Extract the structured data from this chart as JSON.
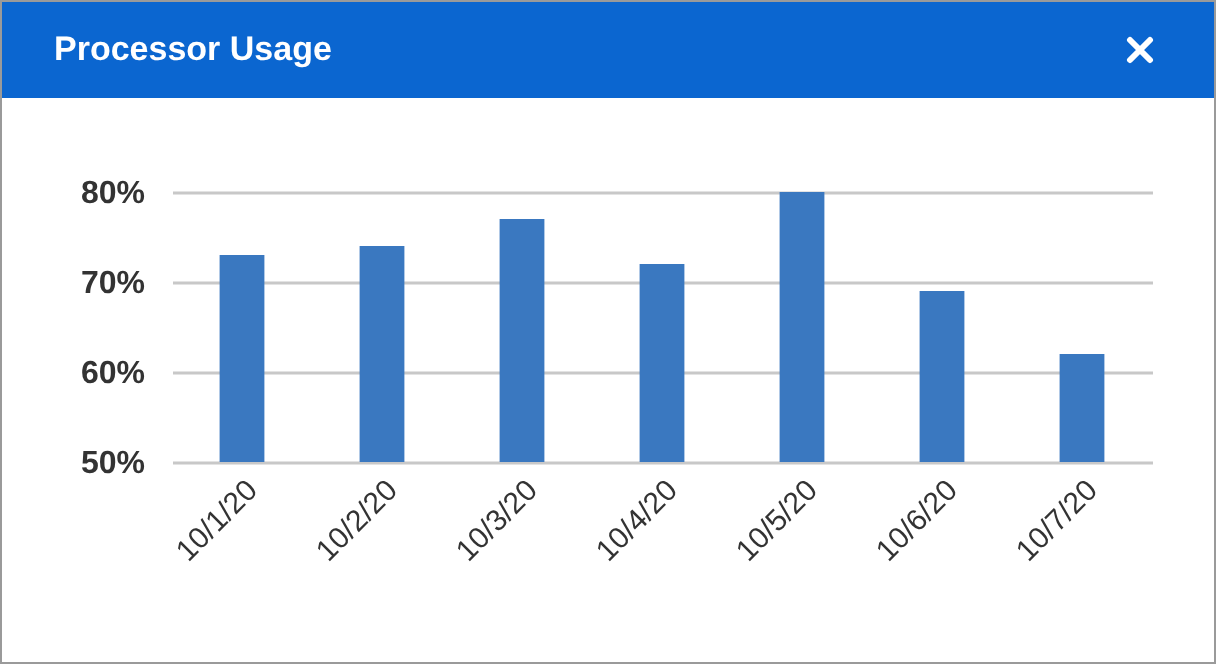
{
  "chart_data": {
    "type": "bar",
    "title": "Processor Usage",
    "categories": [
      "10/1/20",
      "10/2/20",
      "10/3/20",
      "10/4/20",
      "10/5/20",
      "10/6/20",
      "10/7/20"
    ],
    "values": [
      73,
      74,
      77,
      72,
      80,
      69,
      62
    ],
    "color": "#3a78c0",
    "ylim": [
      50,
      80
    ],
    "yticks": [
      {
        "value": 50,
        "label": "50%"
      },
      {
        "value": 60,
        "label": "60%"
      },
      {
        "value": 70,
        "label": "70%"
      },
      {
        "value": 80,
        "label": "80%"
      }
    ],
    "grid": "y"
  }
}
